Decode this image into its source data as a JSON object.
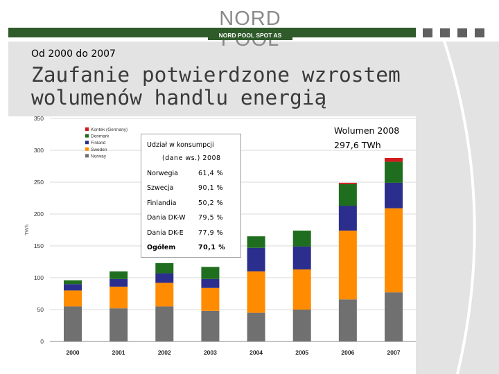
{
  "header": {
    "logo_name": "NORD POOL",
    "logo_sub": "NORD POOL SPOT AS"
  },
  "slide": {
    "subtitle": "Od 2000 do 2007",
    "title": "Zaufanie potwierdzone wzrostem wolumenów handlu energią"
  },
  "volume": {
    "line1": "Wolumen 2008",
    "line2": "297,6 TWh"
  },
  "share_table": {
    "title": "Udział w konsumpcji",
    "subtitle": "(dane ws.) 2008",
    "rows": [
      {
        "country": "Norwegia",
        "value": "61,4 %"
      },
      {
        "country": "Szwecja",
        "value": "90,1 %"
      },
      {
        "country": "Finlandia",
        "value": "50,2 %"
      },
      {
        "country": "Dania DK-W",
        "value": "79,5 %"
      },
      {
        "country": "Dania DK-E",
        "value": "77,9 %"
      },
      {
        "country": "Ogółem",
        "value": "70,1 %"
      }
    ]
  },
  "colors": {
    "brand_green": "#2f5a2a",
    "Norway": "#707070",
    "Sweden": "#ff8c00",
    "Finland": "#2b2e8c",
    "Denmark": "#1f6e1f",
    "Kontek": "#d41a1a"
  },
  "chart_data": {
    "type": "bar",
    "stacked": true,
    "ylabel": "TWh",
    "ylim": [
      0,
      350
    ],
    "yticks": [
      0,
      50,
      100,
      150,
      200,
      250,
      300,
      350
    ],
    "grid": true,
    "legend_position": "top-left",
    "categories": [
      "2000",
      "2001",
      "2002",
      "2003",
      "2004",
      "2005",
      "2006",
      "2007"
    ],
    "series": [
      {
        "name": "Norway",
        "values": [
          55,
          52,
          55,
          48,
          45,
          50,
          66,
          77
        ]
      },
      {
        "name": "Sweden",
        "values": [
          25,
          34,
          37,
          36,
          65,
          63,
          108,
          132
        ]
      },
      {
        "name": "Finland",
        "values": [
          10,
          12,
          15,
          14,
          37,
          36,
          39,
          40
        ]
      },
      {
        "name": "Denmark",
        "values": [
          6,
          12,
          16,
          19,
          18,
          25,
          34,
          33
        ]
      },
      {
        "name": "Kontek (Germany)",
        "values": [
          0,
          0,
          0,
          0,
          0,
          0,
          2,
          6
        ]
      }
    ],
    "legend_order": [
      "Kontek (Germany)",
      "Denmark",
      "Finland",
      "Sweden",
      "Norway"
    ]
  }
}
